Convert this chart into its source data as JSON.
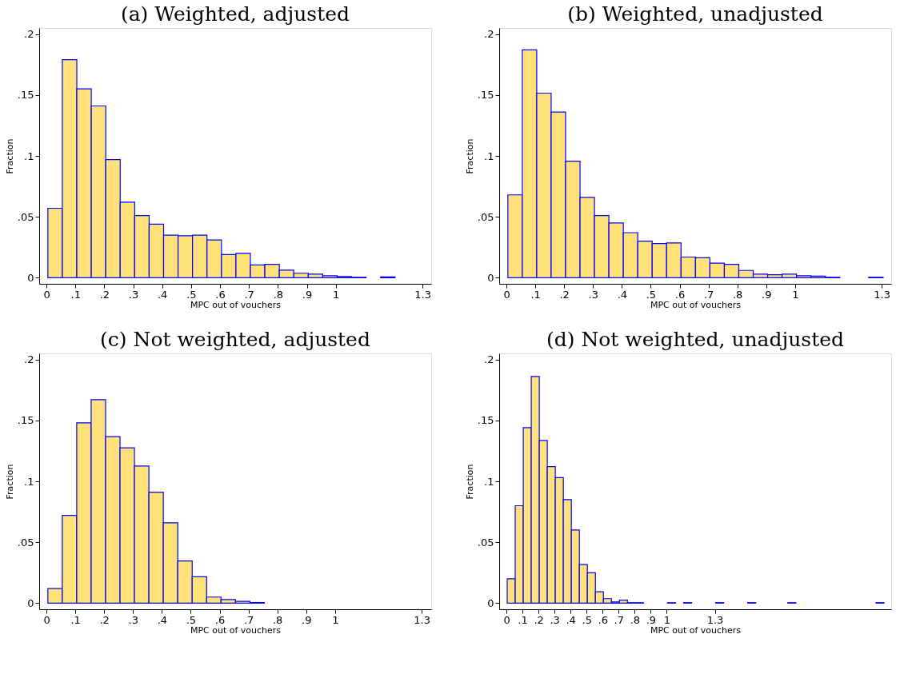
{
  "chart_data": [
    {
      "type": "histogram",
      "title": "(a) Weighted, adjusted",
      "xlabel": "MPC out of vouchers",
      "ylabel": "Fraction",
      "color": "#ffe17a",
      "grid": false,
      "bins": [
        0.005,
        0.055,
        0.105,
        0.155,
        0.205,
        0.255,
        0.305,
        0.355,
        0.405,
        0.455,
        0.505,
        0.555,
        0.605,
        0.655,
        0.705,
        0.755,
        0.805,
        0.855,
        0.905,
        0.955,
        1.005,
        1.055,
        1.105,
        1.155,
        1.205
      ],
      "values": [
        0.057,
        0.179,
        0.155,
        0.141,
        0.097,
        0.062,
        0.051,
        0.044,
        0.035,
        0.0345,
        0.035,
        0.031,
        0.019,
        0.02,
        0.0105,
        0.011,
        0.0063,
        0.0037,
        0.003,
        0.0017,
        0.001,
        0.0004,
        0,
        0.0007
      ],
      "xlim": [
        -0.025,
        1.33
      ],
      "ylim": [
        -0.005,
        0.205
      ],
      "xticks": [
        0,
        {
          "value": 0.1,
          "label": ".1"
        },
        {
          "value": 0.2,
          "label": ".2"
        },
        {
          "value": 0.3,
          "label": ".3"
        },
        {
          "value": 0.4,
          "label": ".4"
        },
        {
          "value": 0.5,
          "label": ".5"
        },
        {
          "value": 0.6,
          "label": ".6"
        },
        {
          "value": 0.7,
          "label": ".7"
        },
        {
          "value": 0.8,
          "label": ".8"
        },
        {
          "value": 0.9,
          "label": ".9"
        },
        1,
        1.3
      ],
      "yticks": [
        0,
        {
          "value": 0.05,
          "label": ".05"
        },
        {
          "value": 0.1,
          "label": ".1"
        },
        {
          "value": 0.15,
          "label": ".15"
        },
        {
          "value": 0.2,
          "label": ".2"
        }
      ]
    },
    {
      "type": "histogram",
      "title": "(b) Weighted, unadjusted",
      "xlabel": "MPC out of vouchers",
      "ylabel": "Fraction",
      "color": "#ffe17a",
      "grid": false,
      "bins": [
        0.005,
        0.055,
        0.105,
        0.155,
        0.205,
        0.255,
        0.305,
        0.355,
        0.405,
        0.455,
        0.505,
        0.555,
        0.605,
        0.655,
        0.705,
        0.755,
        0.805,
        0.855,
        0.905,
        0.955,
        1.005,
        1.055,
        1.105,
        1.155,
        1.205,
        1.255,
        1.305
      ],
      "values": [
        0.068,
        0.187,
        0.1515,
        0.136,
        0.0956,
        0.066,
        0.051,
        0.045,
        0.037,
        0.03,
        0.028,
        0.0286,
        0.017,
        0.0164,
        0.012,
        0.011,
        0.006,
        0.003,
        0.0024,
        0.003,
        0.0017,
        0.0013,
        0.0004,
        0,
        0,
        0.0004
      ],
      "xlim": [
        -0.025,
        1.333
      ],
      "ylim": [
        -0.005,
        0.205
      ],
      "xticks": [
        0,
        {
          "value": 0.1,
          "label": ".1"
        },
        {
          "value": 0.2,
          "label": ".2"
        },
        {
          "value": 0.3,
          "label": ".3"
        },
        {
          "value": 0.4,
          "label": ".4"
        },
        {
          "value": 0.5,
          "label": ".5"
        },
        {
          "value": 0.6,
          "label": ".6"
        },
        {
          "value": 0.7,
          "label": ".7"
        },
        {
          "value": 0.8,
          "label": ".8"
        },
        {
          "value": 0.9,
          "label": ".9"
        },
        1,
        1.3
      ],
      "yticks": [
        0,
        {
          "value": 0.05,
          "label": ".05"
        },
        {
          "value": 0.1,
          "label": ".1"
        },
        {
          "value": 0.15,
          "label": ".15"
        },
        {
          "value": 0.2,
          "label": ".2"
        }
      ]
    },
    {
      "type": "histogram",
      "title": "(c) Not weighted, adjusted",
      "xlabel": "MPC out of vouchers",
      "ylabel": "Fraction",
      "color": "#ffe17a",
      "grid": false,
      "bins": [
        0.005,
        0.055,
        0.105,
        0.155,
        0.205,
        0.255,
        0.305,
        0.355,
        0.405,
        0.455,
        0.505,
        0.555,
        0.605,
        0.655,
        0.705,
        0.755
      ],
      "values": [
        0.012,
        0.072,
        0.148,
        0.167,
        0.1367,
        0.1275,
        0.1125,
        0.091,
        0.066,
        0.0346,
        0.0217,
        0.005,
        0.003,
        0.0015,
        0.0005
      ],
      "xlim": [
        -0.025,
        1.333
      ],
      "ylim": [
        -0.005,
        0.205
      ],
      "xticks": [
        0,
        {
          "value": 0.1,
          "label": ".1"
        },
        {
          "value": 0.2,
          "label": ".2"
        },
        {
          "value": 0.3,
          "label": ".3"
        },
        {
          "value": 0.4,
          "label": ".4"
        },
        {
          "value": 0.5,
          "label": ".5"
        },
        {
          "value": 0.6,
          "label": ".6"
        },
        {
          "value": 0.7,
          "label": ".7"
        },
        {
          "value": 0.8,
          "label": ".8"
        },
        {
          "value": 0.9,
          "label": ".9"
        },
        1,
        1.3
      ],
      "yticks": [
        0,
        {
          "value": 0.05,
          "label": ".05"
        },
        {
          "value": 0.1,
          "label": ".1"
        },
        {
          "value": 0.15,
          "label": ".15"
        },
        {
          "value": 0.2,
          "label": ".2"
        }
      ]
    },
    {
      "type": "histogram",
      "title": "(d) Not weighted, unadjusted",
      "xlabel": "MPC out of vouchers",
      "ylabel": "Fraction",
      "color": "#ffe17a",
      "grid": false,
      "bins": [
        0.005,
        0.055,
        0.105,
        0.155,
        0.205,
        0.255,
        0.305,
        0.355,
        0.405,
        0.455,
        0.505,
        0.555,
        0.605,
        0.655,
        0.705,
        0.755,
        0.805,
        0.855,
        0.905,
        0.955,
        1.005,
        1.055,
        1.105,
        1.155,
        1.205,
        1.255,
        1.305,
        1.355,
        1.405,
        1.455,
        1.505,
        1.555,
        1.605,
        1.655,
        1.705,
        1.755,
        1.805,
        1.855,
        1.905,
        1.955,
        2.005,
        2.055,
        2.105,
        2.155,
        2.205,
        2.255,
        2.305,
        2.355
      ],
      "values": [
        0.02,
        0.08,
        0.144,
        0.186,
        0.1335,
        0.112,
        0.103,
        0.085,
        0.06,
        0.0317,
        0.025,
        0.0094,
        0.0037,
        0.001,
        0.0024,
        0.0004,
        0.0004,
        0,
        0,
        0,
        0.0004,
        0,
        0.0004,
        0,
        0,
        0,
        0.0004,
        0,
        0,
        0,
        0.0004,
        0,
        0,
        0,
        0,
        0.0004,
        0,
        0,
        0,
        0,
        0,
        0,
        0,
        0,
        0,
        0,
        0.0004
      ],
      "xlim": [
        -0.045,
        2.4
      ],
      "ylim": [
        -0.005,
        0.205
      ],
      "xticks": [
        0,
        {
          "value": 0.1,
          "label": ".1"
        },
        {
          "value": 0.2,
          "label": ".2"
        },
        {
          "value": 0.3,
          "label": ".3"
        },
        {
          "value": 0.4,
          "label": ".4"
        },
        {
          "value": 0.5,
          "label": ".5"
        },
        {
          "value": 0.6,
          "label": ".6"
        },
        {
          "value": 0.7,
          "label": ".7"
        },
        {
          "value": 0.8,
          "label": ".8"
        },
        {
          "value": 0.9,
          "label": ".9"
        },
        1,
        1.3
      ],
      "yticks": [
        0,
        {
          "value": 0.05,
          "label": ".05"
        },
        {
          "value": 0.1,
          "label": ".1"
        },
        {
          "value": 0.15,
          "label": ".15"
        },
        {
          "value": 0.2,
          "label": ".2"
        }
      ]
    }
  ]
}
